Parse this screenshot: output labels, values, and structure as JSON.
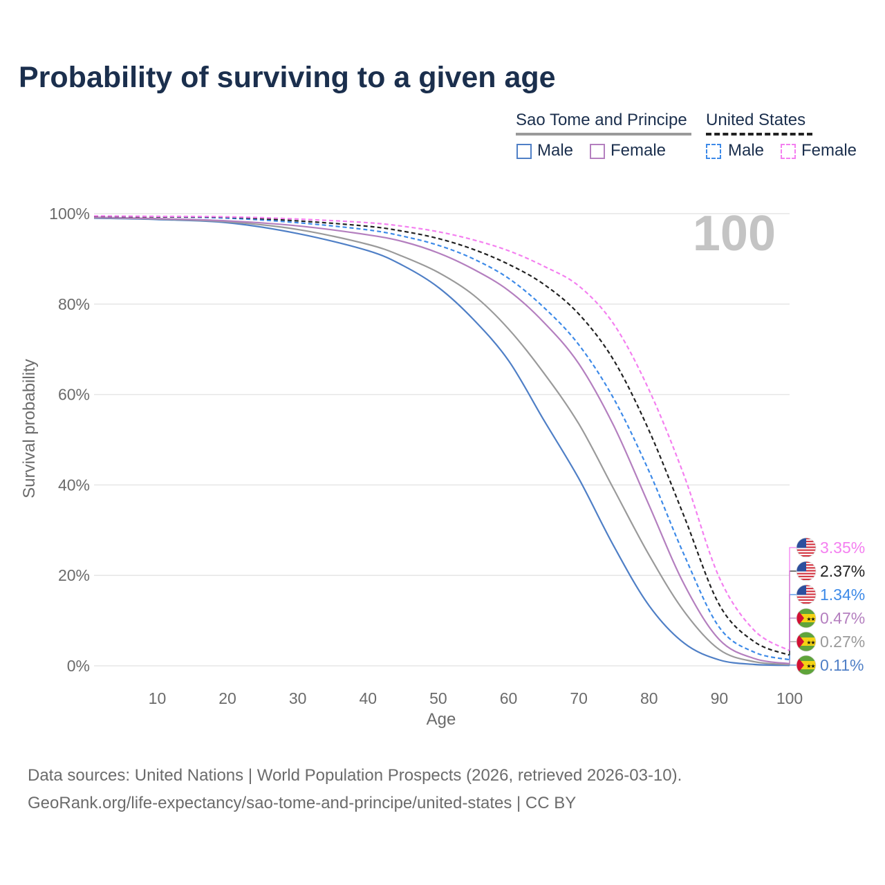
{
  "title": "Probability of surviving to a given age",
  "legend": {
    "groups": [
      {
        "name": "Sao Tome and Principe",
        "line_style": "solid",
        "color": "#9a9a9a",
        "items": [
          {
            "label": "Male",
            "color": "#4f7fc6"
          },
          {
            "label": "Female",
            "color": "#b47fbf"
          }
        ]
      },
      {
        "name": "United States",
        "line_style": "dashed",
        "color": "#222222",
        "items": [
          {
            "label": "Male",
            "color": "#3d8ae8"
          },
          {
            "label": "Female",
            "color": "#f47ff0"
          }
        ]
      }
    ]
  },
  "age_marker": "100",
  "footer": {
    "line1": "Data sources: United Nations | World Population Prospects (2026, retrieved 2026-03-10).",
    "line2": "GeoRank.org/life-expectancy/sao-tome-and-principe/united-states | CC BY"
  },
  "chart_data": {
    "type": "line",
    "xlabel": "Age",
    "ylabel": "Survival probability",
    "xlim": [
      1,
      100
    ],
    "ylim": [
      0,
      100
    ],
    "x_ticks": [
      10,
      20,
      30,
      40,
      50,
      60,
      70,
      80,
      90,
      100
    ],
    "y_ticks": [
      0,
      20,
      40,
      60,
      80,
      100
    ],
    "y_tick_labels": [
      "0%",
      "20%",
      "40%",
      "60%",
      "80%",
      "100%"
    ],
    "grid": true,
    "x": [
      1,
      10,
      20,
      30,
      40,
      45,
      50,
      55,
      60,
      65,
      70,
      75,
      80,
      85,
      90,
      95,
      100
    ],
    "series": [
      {
        "name": "Sao Tome and Principe, Male",
        "country": "Sao Tome and Principe",
        "flag": "stp",
        "style": "solid",
        "color": "#4f7fc6",
        "values": [
          99.0,
          98.7,
          98.0,
          95.6,
          91.8,
          88.5,
          83.7,
          76.6,
          67.5,
          54.4,
          41.4,
          26.4,
          13.3,
          5.0,
          1.3,
          0.3,
          0.11
        ],
        "end_label": "0.11%"
      },
      {
        "name": "Sao Tome and Principe, Both",
        "country": "Sao Tome and Principe",
        "flag": "stp",
        "style": "solid",
        "color": "#9a9a9a",
        "values": [
          99.1,
          98.8,
          98.2,
          96.5,
          93.2,
          90.5,
          87.0,
          82.0,
          74.5,
          64.8,
          53.5,
          39.0,
          24.5,
          12.0,
          3.6,
          0.9,
          0.27
        ],
        "end_label": "0.27%"
      },
      {
        "name": "Sao Tome and Principe, Female",
        "country": "Sao Tome and Principe",
        "flag": "stp",
        "style": "solid",
        "color": "#b47fbf",
        "values": [
          99.2,
          98.9,
          98.4,
          97.3,
          95.3,
          93.8,
          91.3,
          87.7,
          83.0,
          76.0,
          66.8,
          53.0,
          35.5,
          18.0,
          5.8,
          1.6,
          0.47
        ],
        "end_label": "0.47%"
      },
      {
        "name": "United States, Male",
        "country": "United States",
        "flag": "usa",
        "style": "dashed",
        "color": "#3d8ae8",
        "values": [
          99.4,
          99.3,
          99.0,
          98.0,
          96.4,
          95.0,
          93.0,
          90.0,
          85.7,
          79.3,
          71.0,
          59.0,
          43.0,
          24.5,
          8.5,
          3.0,
          1.34
        ],
        "end_label": "1.34%"
      },
      {
        "name": "United States, Both",
        "country": "United States",
        "flag": "usa",
        "style": "dashed",
        "color": "#222222",
        "values": [
          99.4,
          99.3,
          99.2,
          98.4,
          97.2,
          96.1,
          94.5,
          92.1,
          88.8,
          84.4,
          77.8,
          67.5,
          52.0,
          33.0,
          13.5,
          5.3,
          2.37
        ],
        "end_label": "2.37%"
      },
      {
        "name": "United States, Female",
        "country": "United States",
        "flag": "usa",
        "style": "dashed",
        "color": "#f47ff0",
        "values": [
          99.5,
          99.4,
          99.3,
          98.8,
          98.0,
          97.2,
          96.0,
          94.2,
          91.8,
          88.4,
          84.0,
          75.5,
          61.0,
          42.0,
          19.5,
          7.8,
          3.35
        ],
        "end_label": "3.35%"
      }
    ]
  }
}
